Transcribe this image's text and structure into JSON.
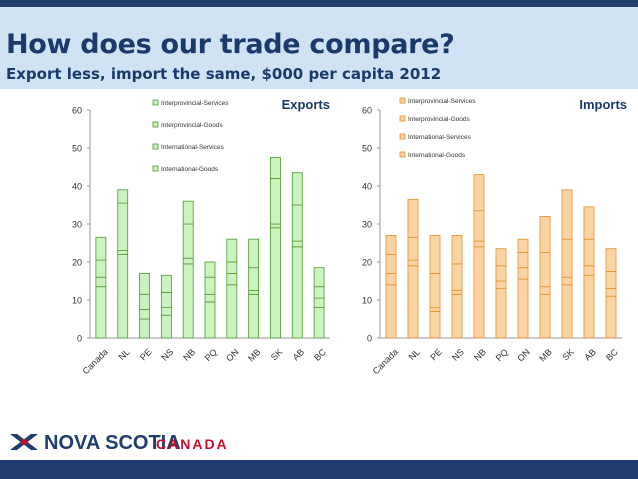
{
  "header": {
    "title": "How does our trade compare?",
    "subtitle": "Export less, import the same, $000 per capita 2012"
  },
  "logo": {
    "name": "NOVA SCOTIA",
    "suffix": "CANADA"
  },
  "colors": {
    "exports_fill": "#ccf2c0",
    "exports_stroke": "#4e9a32",
    "imports_fill": "#fcd3a3",
    "imports_stroke": "#e3922f",
    "header_bg": "#cfe3f5",
    "title": "#1a3a6b",
    "bar_dark": "#1f3d6e"
  },
  "chart_data": [
    {
      "type": "bar",
      "stacked": true,
      "title": "Exports",
      "categories": [
        "Canada",
        "NL",
        "PE",
        "NS",
        "NB",
        "PQ",
        "ON",
        "MB",
        "SK",
        "AB",
        "BC"
      ],
      "ylim": [
        0,
        60
      ],
      "yticks": [
        0,
        10,
        20,
        30,
        40,
        50,
        60
      ],
      "grid": false,
      "legend_position": "top-center",
      "series": [
        {
          "name": "International-Goods",
          "values": [
            13.5,
            22,
            5,
            6,
            19.5,
            9.5,
            14,
            11.5,
            29,
            24,
            8
          ]
        },
        {
          "name": "International-Services",
          "values": [
            2.5,
            1,
            2.5,
            2,
            1.5,
            2,
            3,
            1,
            1,
            1.5,
            2.5
          ]
        },
        {
          "name": "Interprovincial-Goods",
          "values": [
            4.5,
            12.5,
            4,
            4,
            9,
            4.5,
            3,
            6,
            12,
            9.5,
            3
          ]
        },
        {
          "name": "Interprovincial-Services",
          "values": [
            6,
            3.5,
            5.5,
            4.5,
            6,
            4,
            6,
            7.5,
            5.5,
            8.5,
            5
          ]
        }
      ]
    },
    {
      "type": "bar",
      "stacked": true,
      "title": "Imports",
      "categories": [
        "Canada",
        "NL",
        "PE",
        "NS",
        "NB",
        "PQ",
        "ON",
        "MB",
        "SK",
        "AB",
        "BC"
      ],
      "ylim": [
        0,
        60
      ],
      "yticks": [
        0,
        10,
        20,
        30,
        40,
        50,
        60
      ],
      "grid": false,
      "legend_position": "top-left",
      "series": [
        {
          "name": "International-Goods",
          "values": [
            14,
            19,
            7,
            11.5,
            24,
            13,
            15.5,
            11.5,
            14,
            16.5,
            11
          ]
        },
        {
          "name": "International-Services",
          "values": [
            3,
            1.5,
            1,
            1,
            1.5,
            2,
            3,
            2,
            2,
            2.5,
            2
          ]
        },
        {
          "name": "Interprovincial-Goods",
          "values": [
            5,
            6,
            9,
            7,
            8,
            4,
            4,
            9,
            10,
            7,
            4.5
          ]
        },
        {
          "name": "Interprovincial-Services",
          "values": [
            5,
            10,
            10,
            7.5,
            9.5,
            4.5,
            3.5,
            9.5,
            13,
            8.5,
            6
          ]
        }
      ]
    }
  ]
}
